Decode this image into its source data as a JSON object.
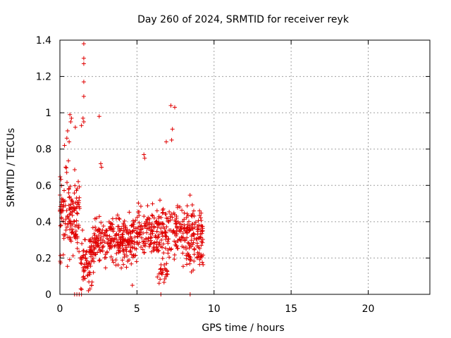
{
  "chart_data": {
    "type": "scatter",
    "title": "Day 260 of 2024, SRMTID for receiver reyk",
    "xlabel": "GPS time / hours",
    "ylabel": "SRMTID / TECUs",
    "xlim": [
      0,
      24
    ],
    "ylim": [
      0,
      1.4
    ],
    "xticks": [
      0,
      5,
      10,
      15,
      20
    ],
    "yticks": [
      0,
      0.2,
      0.4,
      0.6,
      0.8,
      1,
      1.2,
      1.4
    ],
    "xtick_labels": [
      "0",
      "5",
      "10",
      "15",
      "20"
    ],
    "ytick_labels": [
      "0",
      "0.2",
      "0.4",
      "0.6",
      "0.8",
      "1",
      "1.2",
      "1.4"
    ],
    "grid": true,
    "marker": "+",
    "color": "#e00000",
    "series": [
      {
        "name": "SRMTID",
        "clusters": [
          {
            "x_range": [
              0.0,
              1.3
            ],
            "y_center": 0.45,
            "y_spread": 0.22,
            "count": 140
          },
          {
            "x_range": [
              1.3,
              2.2
            ],
            "y_center": 0.2,
            "y_spread": 0.15,
            "count": 80
          },
          {
            "x_range": [
              2.2,
              5.0
            ],
            "y_center": 0.3,
            "y_spread": 0.12,
            "count": 260
          },
          {
            "x_range": [
              5.0,
              7.0
            ],
            "y_center": 0.35,
            "y_spread": 0.15,
            "count": 160
          },
          {
            "x_range": [
              6.3,
              7.0
            ],
            "y_center": 0.12,
            "y_spread": 0.06,
            "count": 25
          },
          {
            "x_range": [
              7.0,
              9.3
            ],
            "y_center": 0.35,
            "y_spread": 0.15,
            "count": 180
          },
          {
            "x_range": [
              8.2,
              9.3
            ],
            "y_center": 0.2,
            "y_spread": 0.07,
            "count": 30
          }
        ],
        "points": [
          [
            1.55,
            1.38
          ],
          [
            1.55,
            1.3
          ],
          [
            1.55,
            1.27
          ],
          [
            1.55,
            1.17
          ],
          [
            1.55,
            1.09
          ],
          [
            0.65,
            0.99
          ],
          [
            0.75,
            0.97
          ],
          [
            0.7,
            0.95
          ],
          [
            1.5,
            0.97
          ],
          [
            1.55,
            0.95
          ],
          [
            1.4,
            0.93
          ],
          [
            2.55,
            0.98
          ],
          [
            7.2,
            1.04
          ],
          [
            7.45,
            1.03
          ],
          [
            1.0,
            0.92
          ],
          [
            0.5,
            0.9
          ],
          [
            0.45,
            0.86
          ],
          [
            0.6,
            0.84
          ],
          [
            0.3,
            0.82
          ],
          [
            7.3,
            0.91
          ],
          [
            7.25,
            0.85
          ],
          [
            6.9,
            0.84
          ],
          [
            5.45,
            0.77
          ],
          [
            5.5,
            0.75
          ],
          [
            2.65,
            0.72
          ],
          [
            2.7,
            0.7
          ],
          [
            0.95,
            0.0
          ],
          [
            1.1,
            0.0
          ],
          [
            1.25,
            0.0
          ],
          [
            1.4,
            0.0
          ],
          [
            6.55,
            0.0
          ],
          [
            8.45,
            0.0
          ],
          [
            1.85,
            0.02
          ],
          [
            1.95,
            0.03
          ],
          [
            2.05,
            0.05
          ],
          [
            4.7,
            0.05
          ]
        ]
      }
    ]
  }
}
